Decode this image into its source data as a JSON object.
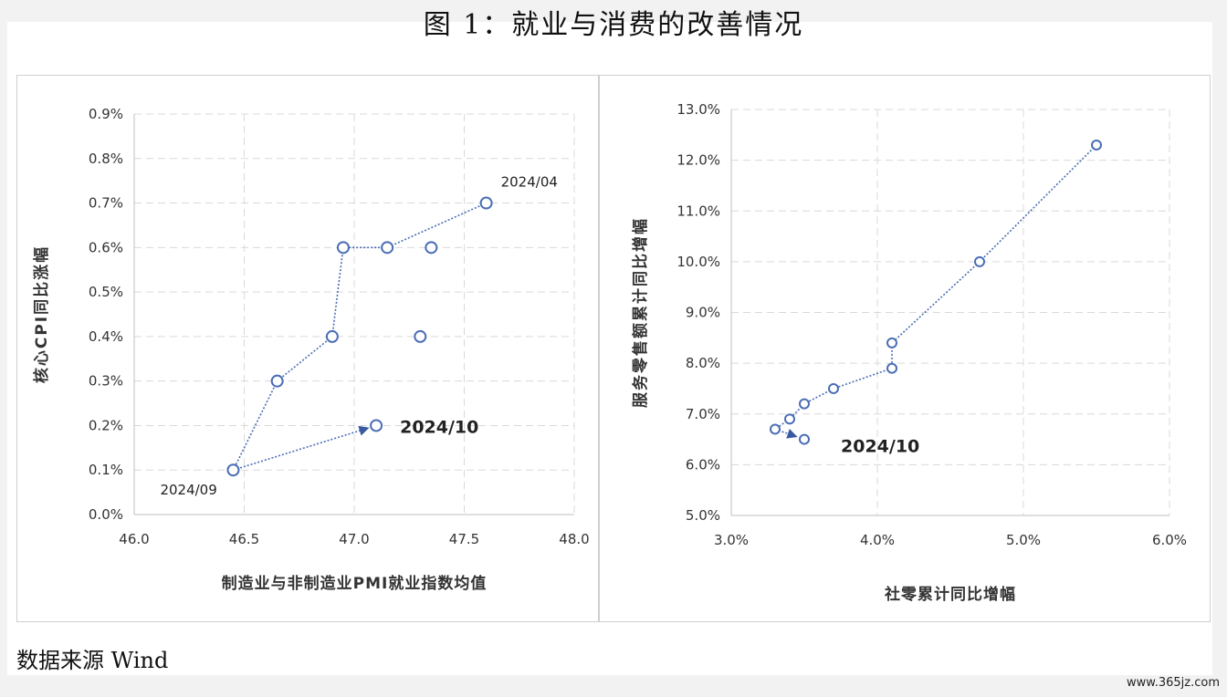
{
  "figure_title": "图 1：就业与消费的改善情况",
  "source_note": "数据来源 Wind",
  "watermark": "www.365jz.com",
  "chart_data": [
    {
      "type": "scatter",
      "connected": true,
      "xlabel": "制造业与非制造业PMI就业指数均值",
      "ylabel": "核心CPI同比涨幅",
      "xlim": [
        46.0,
        48.0
      ],
      "ylim": [
        0.0,
        0.9
      ],
      "x_ticks": [
        "46.0",
        "46.5",
        "47.0",
        "47.5",
        "48.0"
      ],
      "x_tick_values": [
        46.0,
        46.5,
        47.0,
        47.5,
        48.0
      ],
      "y_ticks": [
        "0.0%",
        "0.1%",
        "0.2%",
        "0.3%",
        "0.4%",
        "0.5%",
        "0.6%",
        "0.7%",
        "0.8%",
        "0.9%"
      ],
      "y_tick_values": [
        0.0,
        0.1,
        0.2,
        0.3,
        0.4,
        0.5,
        0.6,
        0.7,
        0.8,
        0.9
      ],
      "grid": true,
      "color": "#4a6db5",
      "points": [
        {
          "x": 47.6,
          "y": 0.7
        },
        {
          "x": 47.15,
          "y": 0.6
        },
        {
          "x": 46.95,
          "y": 0.6
        },
        {
          "x": 46.9,
          "y": 0.4
        },
        {
          "x": 46.65,
          "y": 0.3
        },
        {
          "x": 46.45,
          "y": 0.1
        },
        {
          "x": 47.1,
          "y": 0.2
        }
      ],
      "extra_points": [
        {
          "x": 47.35,
          "y": 0.6
        },
        {
          "x": 47.3,
          "y": 0.4
        }
      ],
      "annotations": [
        {
          "text": "2024/04",
          "x": 47.6,
          "y": 0.7,
          "bold": false
        },
        {
          "text": "2024/09",
          "x": 46.45,
          "y": 0.1,
          "bold": false
        },
        {
          "text": "2024/10",
          "x": 47.1,
          "y": 0.2,
          "bold": true
        }
      ]
    },
    {
      "type": "scatter",
      "connected": true,
      "xlabel": "社零累计同比增幅",
      "ylabel": "服务零售额累计同比增幅",
      "xlim": [
        3.0,
        6.0
      ],
      "ylim": [
        5.0,
        13.0
      ],
      "x_ticks": [
        "3.0%",
        "4.0%",
        "5.0%",
        "6.0%"
      ],
      "x_tick_values": [
        3.0,
        4.0,
        5.0,
        6.0
      ],
      "y_ticks": [
        "5.0%",
        "6.0%",
        "7.0%",
        "8.0%",
        "9.0%",
        "10.0%",
        "11.0%",
        "12.0%",
        "13.0%"
      ],
      "y_tick_values": [
        5.0,
        6.0,
        7.0,
        8.0,
        9.0,
        10.0,
        11.0,
        12.0,
        13.0
      ],
      "grid": true,
      "color": "#4a6db5",
      "points": [
        {
          "x": 5.5,
          "y": 12.3
        },
        {
          "x": 4.7,
          "y": 10.0
        },
        {
          "x": 4.1,
          "y": 8.4
        },
        {
          "x": 4.1,
          "y": 7.9
        },
        {
          "x": 3.7,
          "y": 7.5
        },
        {
          "x": 3.5,
          "y": 7.2
        },
        {
          "x": 3.4,
          "y": 6.9
        },
        {
          "x": 3.3,
          "y": 6.7
        },
        {
          "x": 3.5,
          "y": 6.5
        }
      ],
      "extra_points": [],
      "annotations": [
        {
          "text": "2024/10",
          "x": 3.5,
          "y": 6.5,
          "bold": true
        }
      ]
    }
  ]
}
